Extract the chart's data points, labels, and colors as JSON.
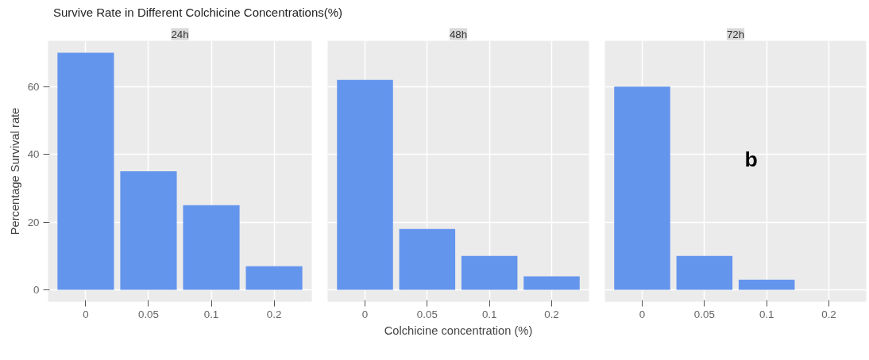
{
  "chart_data": [
    {
      "type": "bar",
      "title": "Survive Rate in Different Colchicine Concentrations(%)",
      "subtitle": "24h",
      "ylabel": "Percentage Survival rate",
      "categories": [
        "0",
        "0.05",
        "0.1",
        "0.2"
      ],
      "values": [
        70,
        35,
        25,
        7
      ],
      "color": "#6495ed",
      "ylim": [
        -3.5,
        73.5
      ],
      "yticks": [
        0,
        20,
        40,
        60
      ],
      "grid": true
    },
    {
      "type": "bar",
      "subtitle": "48h",
      "xlabel": "Colchicine concentration (%)",
      "categories": [
        "0",
        "0.05",
        "0.1",
        "0.2"
      ],
      "values": [
        62,
        18,
        10,
        4
      ],
      "color": "#6495ed",
      "ylim": [
        -3.5,
        73.5
      ],
      "yticks": [
        0,
        20,
        40,
        60
      ],
      "grid": true,
      "tick_labels": "x"
    },
    {
      "type": "bar",
      "subtitle": "72h",
      "categories": [
        "0",
        "0.05",
        "0.1",
        "0.2"
      ],
      "values": [
        60,
        10,
        3,
        0
      ],
      "color": "#6495ed",
      "ylim": [
        -3.5,
        73.5
      ],
      "yticks": [
        0,
        20,
        40,
        60
      ],
      "grid": true,
      "tick_labels": "x",
      "annotations": [
        "b"
      ]
    }
  ]
}
